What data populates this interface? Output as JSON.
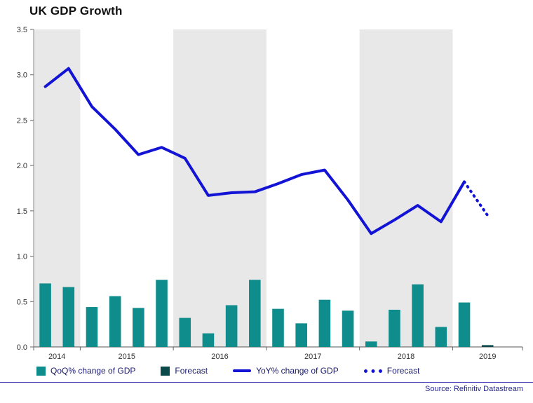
{
  "chart_data": {
    "type": "bar+line",
    "title": "UK GDP Growth",
    "source": "Source: Refinitiv Datastream",
    "ylim": [
      0,
      3.5
    ],
    "ytick_step": 0.5,
    "ytick_labels": [
      "0.0",
      "0.5",
      "1.0",
      "1.5",
      "2.0",
      "2.5",
      "3.0",
      "3.5"
    ],
    "band_color": "#e8e8e8",
    "quarters": [
      "2014Q3",
      "2014Q4",
      "2015Q1",
      "2015Q2",
      "2015Q3",
      "2015Q4",
      "2016Q1",
      "2016Q2",
      "2016Q3",
      "2016Q4",
      "2017Q1",
      "2017Q2",
      "2017Q3",
      "2017Q4",
      "2018Q1",
      "2018Q2",
      "2018Q3",
      "2018Q4",
      "2019Q1",
      "2019Q2",
      "2019Q3"
    ],
    "year_bands": [
      {
        "label": "2014",
        "quarters": 2,
        "shaded": true
      },
      {
        "label": "2015",
        "quarters": 4,
        "shaded": false
      },
      {
        "label": "2016",
        "quarters": 4,
        "shaded": true
      },
      {
        "label": "2017",
        "quarters": 4,
        "shaded": false
      },
      {
        "label": "2018",
        "quarters": 4,
        "shaded": true
      },
      {
        "label": "2019",
        "quarters": 3,
        "shaded": false
      }
    ],
    "series": [
      {
        "name": "QoQ% change of GDP",
        "type": "bar",
        "color": "#0f8c8c",
        "start_index": 0,
        "values": [
          0.7,
          0.66,
          0.44,
          0.56,
          0.43,
          0.74,
          0.32,
          0.15,
          0.46,
          0.74,
          0.42,
          0.26,
          0.52,
          0.4,
          0.06,
          0.41,
          0.69,
          0.22,
          0.49
        ]
      },
      {
        "name": "Forecast",
        "type": "bar",
        "color": "#0b4a4a",
        "start_index": 19,
        "values": [
          0.02
        ]
      },
      {
        "name": "YoY% change of GDP",
        "type": "line",
        "color": "#1313d6",
        "start_index": 0,
        "values": [
          2.87,
          3.07,
          2.65,
          2.4,
          2.12,
          2.2,
          2.08,
          1.67,
          1.7,
          1.71,
          1.8,
          1.9,
          1.95,
          1.62,
          1.25,
          1.4,
          1.56,
          1.38,
          1.82
        ]
      },
      {
        "name": "Forecast",
        "type": "line-dotted",
        "color": "#1313d6",
        "start_index": 18,
        "values": [
          1.82,
          1.45
        ]
      }
    ],
    "legend": [
      {
        "label": "QoQ% change of GDP",
        "marker": "square",
        "color": "#0f8c8c"
      },
      {
        "label": "Forecast",
        "marker": "square",
        "color": "#0b4a4a"
      },
      {
        "label": "YoY% change of GDP",
        "marker": "line",
        "color": "#1313d6"
      },
      {
        "label": "Forecast",
        "marker": "dots",
        "color": "#1313d6"
      }
    ]
  }
}
